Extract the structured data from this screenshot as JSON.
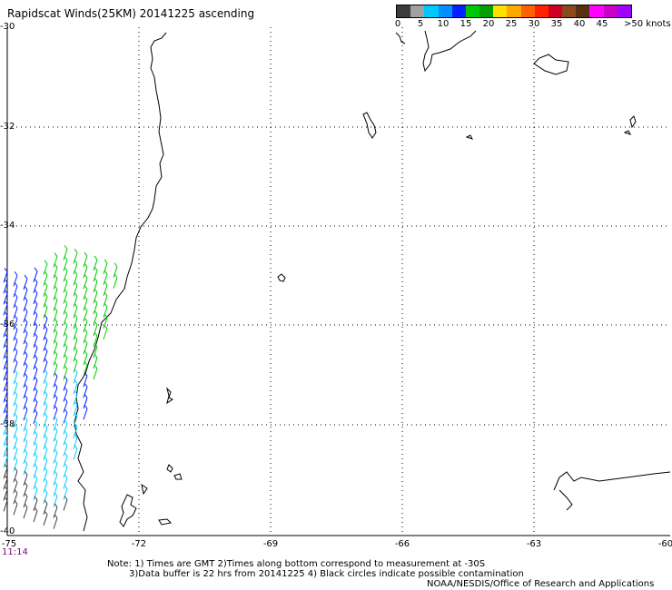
{
  "title": "Rapidscat Winds(25KM) 20141225 ascending",
  "colorbar": {
    "labels": [
      "0",
      "5",
      "10",
      "15",
      "20",
      "25",
      "30",
      "35",
      "40",
      "45"
    ],
    "unit": ">50 knots",
    "colors": [
      "#3c3c3c",
      "#a0a0a0",
      "#00c8ff",
      "#0090ff",
      "#0020ff",
      "#00c800",
      "#00a000",
      "#ffe000",
      "#ffa800",
      "#ff6000",
      "#ff2000",
      "#d00020",
      "#8b4a1c",
      "#5a2f10",
      "#ff00ff",
      "#c800c8",
      "#a000ff"
    ]
  },
  "axes": {
    "lat_labels": [
      "-30",
      "-32",
      "-34",
      "-36",
      "-38",
      "-40"
    ],
    "lon_labels": [
      "-75",
      "-72",
      "-69",
      "-66",
      "-63",
      "-60"
    ]
  },
  "time_label": "11:14",
  "notes": {
    "line1": "Note: 1) Times are GMT 2)Times along bottom correspond to measurement at -30S",
    "line2": "3)Data buffer is 22 hrs from 20141225 4) Black circles indicate possible contamination",
    "credit": "NOAA/NESDIS/Office of Research and Applications"
  }
}
